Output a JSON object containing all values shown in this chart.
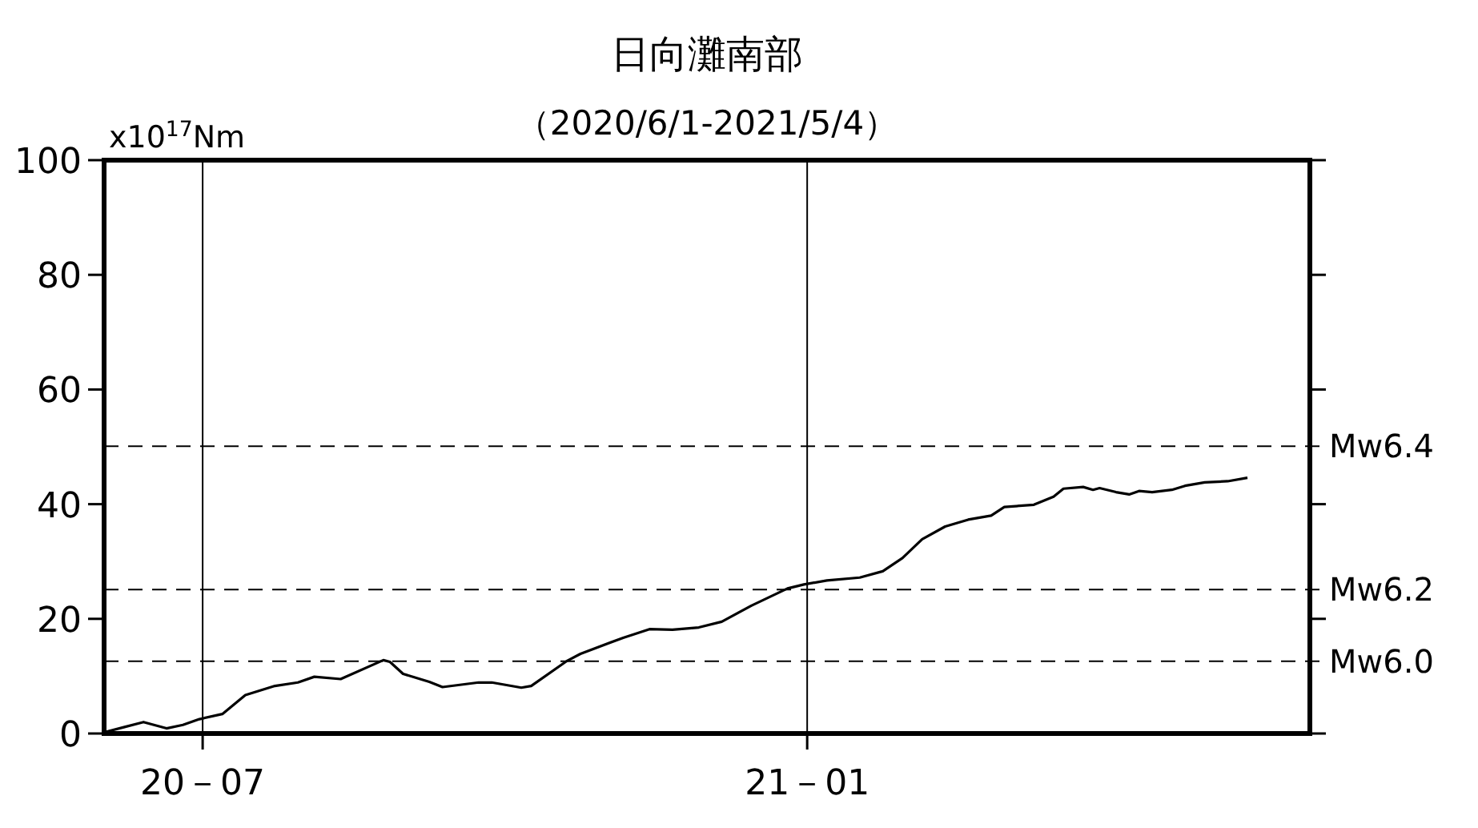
{
  "chart_data": {
    "type": "line",
    "title": "日向灘南部",
    "subtitle": "（2020/6/1-2021/5/4）",
    "ylabel": "x10$^{17}$Nm",
    "xlim": [
      "2020-06-01",
      "2021-06-03"
    ],
    "ylim": [
      0,
      100
    ],
    "yticks": [
      0,
      20,
      40,
      60,
      80,
      100
    ],
    "xticks": [
      {
        "value": "2020-07-01",
        "label": "20－07"
      },
      {
        "value": "2021-01-01",
        "label": "21－01"
      }
    ],
    "grid": "x",
    "marker": "none",
    "line_style": "solid",
    "ref_lines": [
      {
        "axis": "y",
        "value": 50.1,
        "label": "Mw6.4",
        "line_style": "dashed"
      },
      {
        "axis": "y",
        "value": 25.1,
        "label": "Mw6.2",
        "line_style": "dashed"
      },
      {
        "axis": "y",
        "value": 12.6,
        "label": "Mw6.0",
        "line_style": "dashed"
      }
    ],
    "x": [
      "2020-06-01",
      "2020-06-07",
      "2020-06-13",
      "2020-06-20",
      "2020-06-25",
      "2020-06-30",
      "2020-07-07",
      "2020-07-14",
      "2020-07-23",
      "2020-07-30",
      "2020-08-04",
      "2020-08-12",
      "2020-08-25",
      "2020-08-27",
      "2020-08-31",
      "2020-09-08",
      "2020-09-12",
      "2020-09-23",
      "2020-09-27",
      "2020-10-06",
      "2020-10-09",
      "2020-10-20",
      "2020-10-24",
      "2020-11-06",
      "2020-11-14",
      "2020-11-21",
      "2020-11-29",
      "2020-12-06",
      "2020-12-15",
      "2020-12-26",
      "2020-12-31",
      "2021-01-07",
      "2021-01-17",
      "2021-01-24",
      "2021-01-30",
      "2021-02-05",
      "2021-02-12",
      "2021-02-19",
      "2021-02-26",
      "2021-03-02",
      "2021-03-11",
      "2021-03-17",
      "2021-03-20",
      "2021-03-26",
      "2021-03-29",
      "2021-03-31",
      "2021-04-05",
      "2021-04-09",
      "2021-04-12",
      "2021-04-16",
      "2021-04-22",
      "2021-04-26",
      "2021-05-02",
      "2021-05-09",
      "2021-05-15"
    ],
    "series": [
      {
        "color": "#000000",
        "values": [
          0.2,
          1.1,
          2.0,
          0.9,
          1.5,
          2.5,
          3.4,
          6.7,
          8.3,
          8.9,
          9.9,
          9.5,
          12.8,
          12.5,
          10.4,
          9.0,
          8.1,
          8.9,
          8.9,
          8.0,
          8.3,
          12.7,
          13.9,
          16.7,
          18.2,
          18.1,
          18.5,
          19.5,
          22.3,
          25.3,
          26.0,
          26.7,
          27.2,
          28.3,
          30.6,
          33.9,
          36.1,
          37.3,
          38.0,
          39.5,
          39.9,
          41.3,
          42.7,
          43.0,
          42.5,
          42.8,
          42.1,
          41.7,
          42.3,
          42.1,
          42.5,
          43.2,
          43.8,
          44.0,
          44.6
        ]
      }
    ]
  }
}
